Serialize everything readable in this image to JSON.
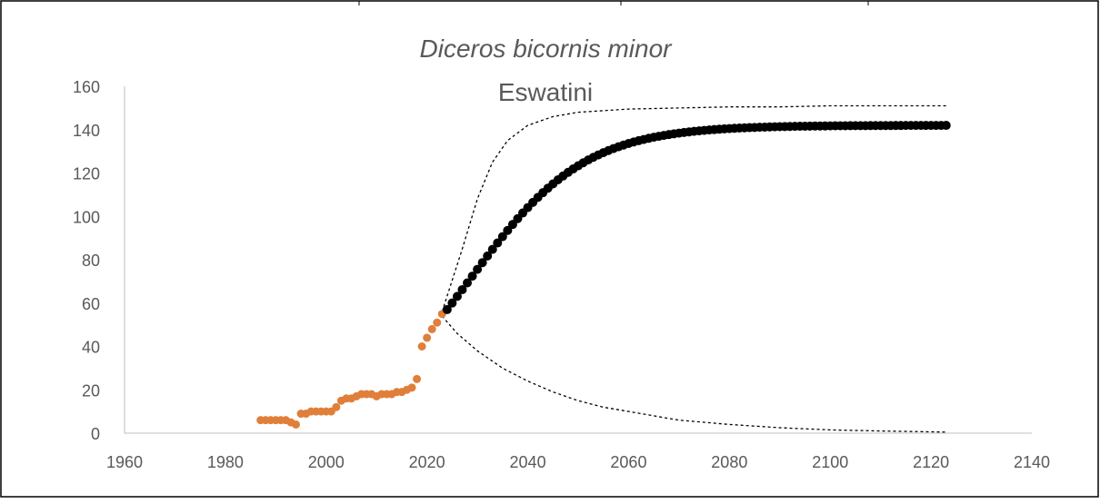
{
  "chart_data": {
    "type": "scatter",
    "title": "Diceros bicornis minor",
    "subtitle": "Eswatini",
    "xlabel": "",
    "ylabel": "",
    "xlim": [
      1960,
      2140
    ],
    "ylim": [
      0,
      160
    ],
    "x_ticks": [
      1960,
      1980,
      2000,
      2020,
      2040,
      2060,
      2080,
      2100,
      2120,
      2140
    ],
    "y_ticks": [
      0,
      20,
      40,
      60,
      80,
      100,
      120,
      140,
      160
    ],
    "grid": false,
    "legend": "none",
    "colors": {
      "observed": "#E07F3A",
      "projected": "#000000",
      "bounds": "#000000",
      "axis": "#BFBFBF",
      "text": "#595959"
    },
    "series": [
      {
        "style": "orange-points",
        "points": [
          [
            1987,
            6
          ],
          [
            1988,
            6
          ],
          [
            1989,
            6
          ],
          [
            1990,
            6
          ],
          [
            1991,
            6
          ],
          [
            1992,
            6
          ],
          [
            1993,
            5
          ],
          [
            1994,
            4
          ],
          [
            1995,
            9
          ],
          [
            1996,
            9
          ],
          [
            1997,
            10
          ],
          [
            1998,
            10
          ],
          [
            1999,
            10
          ],
          [
            2000,
            10
          ],
          [
            2001,
            10
          ],
          [
            2002,
            12
          ],
          [
            2003,
            15
          ],
          [
            2004,
            16
          ],
          [
            2005,
            16
          ],
          [
            2006,
            17
          ],
          [
            2007,
            18
          ],
          [
            2008,
            18
          ],
          [
            2009,
            18
          ],
          [
            2010,
            17
          ],
          [
            2011,
            18
          ],
          [
            2012,
            18
          ],
          [
            2013,
            18
          ],
          [
            2014,
            19
          ],
          [
            2015,
            19
          ],
          [
            2016,
            20
          ],
          [
            2017,
            21
          ],
          [
            2018,
            25
          ],
          [
            2019,
            40
          ],
          [
            2020,
            44
          ],
          [
            2021,
            48
          ],
          [
            2022,
            51
          ],
          [
            2023,
            55
          ]
        ]
      },
      {
        "style": "black-points",
        "generator": {
          "x_start": 2024,
          "x_end": 2123,
          "step": 1,
          "logistic": {
            "K": 142,
            "r": 0.088,
            "x0": 2024,
            "y0": 57
          }
        }
      },
      {
        "style": "dashed-upper",
        "points": [
          [
            2023,
            56
          ],
          [
            2027,
            85
          ],
          [
            2030,
            108
          ],
          [
            2033,
            125
          ],
          [
            2036,
            135
          ],
          [
            2040,
            142
          ],
          [
            2045,
            146
          ],
          [
            2050,
            148
          ],
          [
            2060,
            149.5
          ],
          [
            2070,
            150
          ],
          [
            2080,
            150.5
          ],
          [
            2090,
            150.5
          ],
          [
            2100,
            151
          ],
          [
            2110,
            151
          ],
          [
            2123,
            151
          ]
        ]
      },
      {
        "style": "dashed-lower",
        "points": [
          [
            2023,
            54
          ],
          [
            2026,
            46
          ],
          [
            2030,
            38
          ],
          [
            2035,
            30
          ],
          [
            2040,
            24
          ],
          [
            2045,
            19
          ],
          [
            2050,
            15
          ],
          [
            2055,
            12
          ],
          [
            2060,
            10
          ],
          [
            2065,
            8
          ],
          [
            2070,
            6
          ],
          [
            2080,
            4
          ],
          [
            2090,
            2.5
          ],
          [
            2100,
            1.5
          ],
          [
            2110,
            1
          ],
          [
            2123,
            0.5
          ]
        ]
      }
    ]
  }
}
